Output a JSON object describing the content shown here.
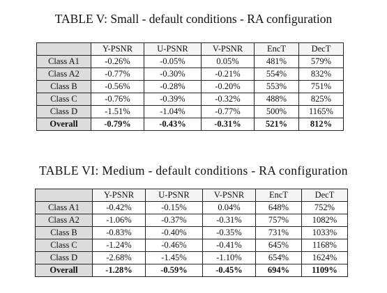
{
  "tables": [
    {
      "caption": "TABLE V: Small - default conditions - RA configuration",
      "headers": [
        "",
        "Y-PSNR",
        "U-PSNR",
        "V-PSNR",
        "EncT",
        "DecT"
      ],
      "rows": [
        [
          "Class A1",
          "-0.26%",
          "-0.05%",
          "0.05%",
          "481%",
          "579%"
        ],
        [
          "Class A2",
          "-0.77%",
          "-0.30%",
          "-0.21%",
          "554%",
          "832%"
        ],
        [
          "Class B",
          "-0.56%",
          "-0.28%",
          "-0.20%",
          "553%",
          "751%"
        ],
        [
          "Class C",
          "-0.76%",
          "-0.39%",
          "-0.32%",
          "488%",
          "825%"
        ],
        [
          "Class D",
          "-1.51%",
          "-1.04%",
          "-0.77%",
          "500%",
          "1165%"
        ],
        [
          "Overall",
          "-0.79%",
          "-0.43%",
          "-0.31%",
          "521%",
          "812%"
        ]
      ]
    },
    {
      "caption": "TABLE VI: Medium - default conditions - RA configuration",
      "headers": [
        "",
        "Y-PSNR",
        "U-PSNR",
        "V-PSNR",
        "EncT",
        "DecT"
      ],
      "rows": [
        [
          "Class A1",
          "-0.42%",
          "-0.15%",
          "0.04%",
          "648%",
          "752%"
        ],
        [
          "Class A2",
          "-1.06%",
          "-0.37%",
          "-0.31%",
          "757%",
          "1082%"
        ],
        [
          "Class B",
          "-0.83%",
          "-0.40%",
          "-0.35%",
          "731%",
          "1033%"
        ],
        [
          "Class C",
          "-1.24%",
          "-0.46%",
          "-0.41%",
          "645%",
          "1168%"
        ],
        [
          "Class D",
          "-2.68%",
          "-1.45%",
          "-1.10%",
          "654%",
          "1624%"
        ],
        [
          "Overall",
          "-1.28%",
          "-0.59%",
          "-0.45%",
          "694%",
          "1109%"
        ]
      ]
    }
  ]
}
